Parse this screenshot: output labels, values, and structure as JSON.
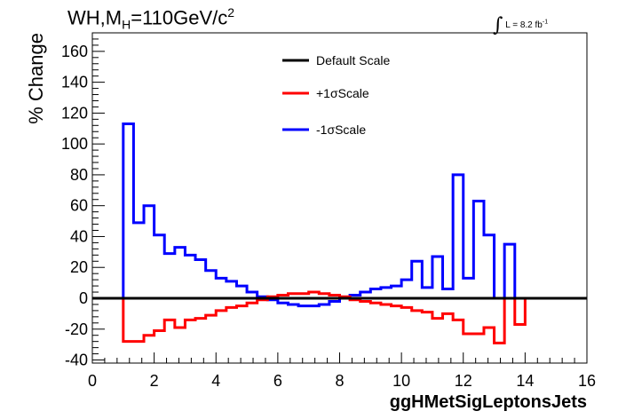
{
  "header": {
    "title_prefix": "WH,M",
    "title_sub": "H",
    "title_mid": "=110GeV/c",
    "title_sup": "2",
    "lumi_symbol": "∫",
    "lumi_text": "L = 8.2 fb",
    "lumi_exp": "-1"
  },
  "chart_data": {
    "type": "line",
    "xlabel": "ggHMetSigLeptonsJets",
    "ylabel": "% Change",
    "xlim": [
      0,
      16
    ],
    "ylim": [
      -42,
      172
    ],
    "x_ticks": [
      "0",
      "2",
      "4",
      "6",
      "8",
      "10",
      "12",
      "14",
      "16"
    ],
    "y_ticks": [
      "-40",
      "-20",
      "0",
      "20",
      "40",
      "60",
      "80",
      "100",
      "120",
      "140",
      "160"
    ],
    "grid": false,
    "legend_position": "top-center",
    "step": true,
    "bin_edges": [
      1.0,
      1.333,
      1.667,
      2.0,
      2.333,
      2.667,
      3.0,
      3.333,
      3.667,
      4.0,
      4.333,
      4.667,
      5.0,
      5.333,
      5.667,
      6.0,
      6.333,
      6.667,
      7.0,
      7.333,
      7.667,
      8.0,
      8.333,
      8.667,
      9.0,
      9.333,
      9.667,
      10.0,
      10.333,
      10.667,
      11.0,
      11.333,
      11.667,
      12.0,
      12.333,
      12.667,
      13.0,
      13.333,
      13.667,
      14.0
    ],
    "series": [
      {
        "name": "Default Scale",
        "color": "#000000",
        "values": [
          0,
          0,
          0,
          0,
          0,
          0,
          0,
          0,
          0,
          0,
          0,
          0,
          0,
          0,
          0,
          0,
          0,
          0,
          0,
          0,
          0,
          0,
          0,
          0,
          0,
          0,
          0,
          0,
          0,
          0,
          0,
          0,
          0,
          0,
          0,
          0,
          0,
          0,
          0
        ]
      },
      {
        "name": "+1σScale",
        "color": "#ff0000",
        "values": [
          -28,
          -28,
          -24,
          -21,
          -14,
          -19,
          -14,
          -13,
          -11,
          -8,
          -6,
          -5,
          -3,
          -1,
          1,
          2,
          3,
          3,
          4,
          3,
          2,
          1,
          -1,
          -2,
          -3,
          -4,
          -5,
          -6,
          -8,
          -9,
          -13,
          -10,
          -14,
          -23,
          -23,
          -19,
          -29,
          0,
          -17
        ]
      },
      {
        "name": "-1σScale",
        "color": "#0000ff",
        "values": [
          113,
          49,
          60,
          41,
          29,
          33,
          28,
          25,
          18,
          13,
          11,
          8,
          4,
          1,
          -1,
          -3,
          -4,
          -5,
          -5,
          -4,
          -2,
          0,
          2,
          4,
          6,
          7,
          8,
          12,
          24,
          7,
          27,
          6,
          80,
          13,
          63,
          41,
          0,
          35,
          0
        ]
      }
    ]
  }
}
